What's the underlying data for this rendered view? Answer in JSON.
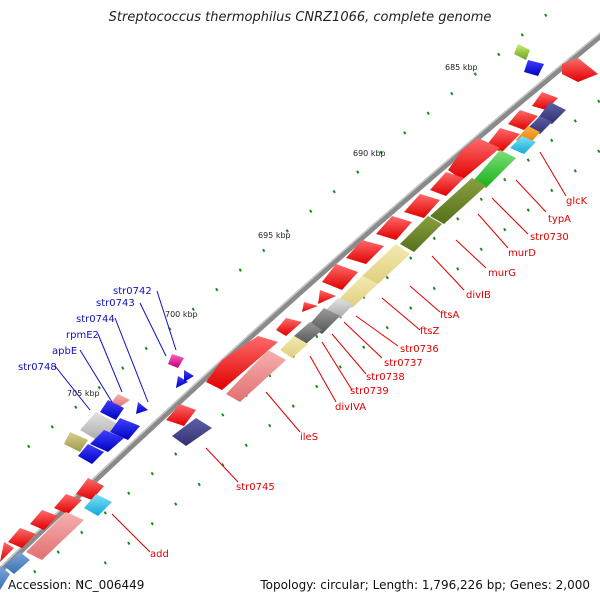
{
  "title": "Streptococcus thermophilus CNRZ1066, complete genome",
  "footer": {
    "accession_label": "Accession:",
    "accession": "NC_006449",
    "topology_label": "Topology:",
    "topology": "circular",
    "length_label": "Length:",
    "length": "1,796,226 bp",
    "genes_label": "Genes:",
    "genes": "2,000"
  },
  "ticks": [
    "685 kbp",
    "690 kbp",
    "695 kbp",
    "700 kbp",
    "705 kbp"
  ],
  "forward_strand_labels": [
    "str0742",
    "str0743",
    "str0744",
    "rpmE2",
    "apbE",
    "str0748"
  ],
  "reverse_strand_labels": [
    "glcK",
    "typA",
    "str0730",
    "murD",
    "murG",
    "divIB",
    "ftsA",
    "ftsZ",
    "str0736",
    "str0737",
    "str0738",
    "str0739",
    "divIVA",
    "ileS",
    "str0745",
    "add"
  ],
  "colors": {
    "backbone": "#8a8a8a",
    "forward_label": "#1010c0",
    "reverse_label": "#e00000",
    "dots": "#1a8a1a"
  }
}
